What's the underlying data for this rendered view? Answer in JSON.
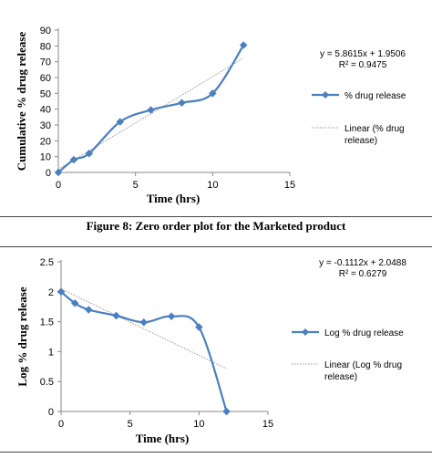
{
  "figure": {
    "caption": "Figure 8: Zero order plot for the Marketed product"
  },
  "chart_data": [
    {
      "type": "line",
      "xlabel": "Time (hrs)",
      "ylabel": "Cumulative % drug release",
      "xlim": [
        0,
        15
      ],
      "ylim": [
        0,
        90
      ],
      "x_ticks": [
        0,
        5,
        10,
        15
      ],
      "y_ticks": [
        0,
        10,
        20,
        30,
        40,
        50,
        60,
        70,
        80,
        90
      ],
      "grid": false,
      "legend_position": "right",
      "series": [
        {
          "name": "% drug release",
          "color": "#4a7fc0",
          "marker": "diamond",
          "x": [
            0,
            1,
            2,
            4,
            6,
            8,
            10,
            12
          ],
          "y": [
            0,
            8,
            12,
            32,
            39.5,
            44,
            50,
            80.5
          ]
        },
        {
          "name": "Linear (% drug release)",
          "color": "#9a9a9a",
          "style": "dotted",
          "x": [
            0,
            12
          ],
          "y": [
            1.9506,
            72.2886
          ]
        }
      ],
      "equation": "y = 5.8615x + 1.9506",
      "r_squared": "R² = 0.9475"
    },
    {
      "type": "line",
      "xlabel": "Time (hrs)",
      "ylabel": "Log % drug release",
      "xlim": [
        0,
        15
      ],
      "ylim": [
        0,
        2.5
      ],
      "x_ticks": [
        0,
        5,
        10,
        15
      ],
      "y_ticks": [
        "0",
        "0.5",
        "1",
        "1.5",
        "2",
        "2.5"
      ],
      "grid": false,
      "legend_position": "right",
      "series": [
        {
          "name": "Log % drug release",
          "color": "#4a7fc0",
          "marker": "diamond",
          "x": [
            0,
            1,
            2,
            4,
            6,
            8,
            10,
            12
          ],
          "y": [
            2.0,
            1.81,
            1.7,
            1.6,
            1.49,
            1.59,
            1.41,
            0.0
          ]
        },
        {
          "name": "Linear (Log % drug release)",
          "color": "#9a9a9a",
          "style": "dotted",
          "x": [
            0,
            12
          ],
          "y": [
            2.0488,
            0.7144
          ]
        }
      ],
      "equation": "y = -0.1112x + 2.0488",
      "r_squared": "R² = 0.6279"
    }
  ]
}
